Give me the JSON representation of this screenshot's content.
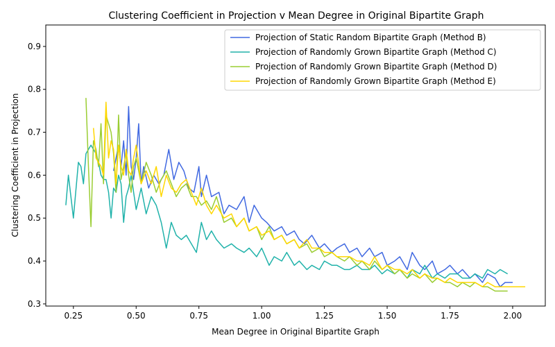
{
  "chart_data": {
    "type": "line",
    "title": "Clustering Coefficient in Projection v Mean Degree in Original Bipartite Graph",
    "xlabel": "Mean Degree in Original Bipartite Graph",
    "ylabel": "Clustering Coefficient in Projection",
    "xlim": [
      0.14,
      2.13
    ],
    "ylim": [
      0.295,
      0.95
    ],
    "xticks": [
      0.25,
      0.5,
      0.75,
      1.0,
      1.25,
      1.5,
      1.75,
      2.0
    ],
    "xtick_labels": [
      "0.25",
      "0.50",
      "0.75",
      "1.00",
      "1.25",
      "1.50",
      "1.75",
      "2.00"
    ],
    "yticks": [
      0.3,
      0.4,
      0.5,
      0.6,
      0.7,
      0.8,
      0.9
    ],
    "ytick_labels": [
      "0.3",
      "0.4",
      "0.5",
      "0.6",
      "0.7",
      "0.8",
      "0.9"
    ],
    "grid": false,
    "legend_position": "top-right",
    "series": [
      {
        "name": "Projection of Static Random Bipartite Graph (Method B)",
        "color": "#4169e1",
        "x": [
          0.41,
          0.42,
          0.43,
          0.44,
          0.45,
          0.46,
          0.47,
          0.48,
          0.49,
          0.5,
          0.51,
          0.52,
          0.53,
          0.55,
          0.57,
          0.59,
          0.61,
          0.63,
          0.65,
          0.67,
          0.69,
          0.71,
          0.73,
          0.75,
          0.76,
          0.78,
          0.8,
          0.83,
          0.85,
          0.87,
          0.9,
          0.93,
          0.95,
          0.97,
          1.0,
          1.02,
          1.05,
          1.08,
          1.1,
          1.13,
          1.15,
          1.17,
          1.2,
          1.23,
          1.25,
          1.28,
          1.3,
          1.33,
          1.35,
          1.38,
          1.4,
          1.43,
          1.45,
          1.48,
          1.5,
          1.53,
          1.55,
          1.58,
          1.6,
          1.63,
          1.65,
          1.68,
          1.7,
          1.73,
          1.75,
          1.78,
          1.8,
          1.83,
          1.85,
          1.88,
          1.9,
          1.93,
          1.95,
          1.97,
          2.0
        ],
        "y": [
          0.61,
          0.64,
          0.67,
          0.62,
          0.68,
          0.6,
          0.76,
          0.62,
          0.59,
          0.64,
          0.72,
          0.58,
          0.62,
          0.57,
          0.6,
          0.58,
          0.6,
          0.66,
          0.59,
          0.63,
          0.61,
          0.57,
          0.56,
          0.62,
          0.55,
          0.6,
          0.55,
          0.56,
          0.51,
          0.53,
          0.52,
          0.55,
          0.49,
          0.53,
          0.5,
          0.49,
          0.47,
          0.48,
          0.46,
          0.47,
          0.45,
          0.44,
          0.46,
          0.43,
          0.44,
          0.42,
          0.43,
          0.44,
          0.42,
          0.43,
          0.41,
          0.43,
          0.41,
          0.42,
          0.39,
          0.4,
          0.41,
          0.38,
          0.42,
          0.39,
          0.38,
          0.4,
          0.37,
          0.38,
          0.39,
          0.37,
          0.38,
          0.36,
          0.37,
          0.35,
          0.37,
          0.36,
          0.34,
          0.35,
          0.35
        ]
      },
      {
        "name": "Projection of Randomly Grown Bipartite Graph (Method C)",
        "color": "#20b2aa",
        "x": [
          0.22,
          0.23,
          0.25,
          0.27,
          0.28,
          0.29,
          0.3,
          0.31,
          0.32,
          0.33,
          0.34,
          0.35,
          0.36,
          0.37,
          0.38,
          0.39,
          0.4,
          0.41,
          0.42,
          0.43,
          0.44,
          0.45,
          0.46,
          0.47,
          0.48,
          0.49,
          0.5,
          0.52,
          0.54,
          0.56,
          0.58,
          0.6,
          0.62,
          0.64,
          0.66,
          0.68,
          0.7,
          0.72,
          0.74,
          0.76,
          0.78,
          0.8,
          0.82,
          0.85,
          0.88,
          0.9,
          0.93,
          0.95,
          0.98,
          1.0,
          1.03,
          1.05,
          1.08,
          1.1,
          1.13,
          1.15,
          1.18,
          1.2,
          1.23,
          1.25,
          1.28,
          1.3,
          1.33,
          1.35,
          1.38,
          1.4,
          1.43,
          1.45,
          1.48,
          1.5,
          1.53,
          1.55,
          1.58,
          1.6,
          1.63,
          1.65,
          1.68,
          1.7,
          1.73,
          1.75,
          1.78,
          1.8,
          1.83,
          1.85,
          1.88,
          1.9,
          1.93,
          1.95,
          1.98
        ],
        "y": [
          0.53,
          0.6,
          0.5,
          0.63,
          0.62,
          0.58,
          0.65,
          0.66,
          0.67,
          0.66,
          0.65,
          0.63,
          0.6,
          0.59,
          0.59,
          0.56,
          0.5,
          0.57,
          0.56,
          0.6,
          0.58,
          0.49,
          0.55,
          0.57,
          0.6,
          0.56,
          0.52,
          0.57,
          0.51,
          0.55,
          0.53,
          0.49,
          0.43,
          0.49,
          0.46,
          0.45,
          0.46,
          0.44,
          0.42,
          0.49,
          0.45,
          0.47,
          0.45,
          0.43,
          0.44,
          0.43,
          0.42,
          0.43,
          0.41,
          0.43,
          0.39,
          0.41,
          0.4,
          0.42,
          0.39,
          0.4,
          0.38,
          0.39,
          0.38,
          0.4,
          0.39,
          0.39,
          0.38,
          0.38,
          0.39,
          0.38,
          0.38,
          0.39,
          0.37,
          0.38,
          0.37,
          0.38,
          0.36,
          0.38,
          0.37,
          0.39,
          0.36,
          0.37,
          0.36,
          0.37,
          0.37,
          0.36,
          0.36,
          0.37,
          0.36,
          0.38,
          0.37,
          0.38,
          0.37
        ]
      },
      {
        "name": "Projection of Randomly Grown Bipartite Graph (Method D)",
        "color": "#9acd32",
        "x": [
          0.3,
          0.31,
          0.32,
          0.33,
          0.34,
          0.35,
          0.36,
          0.37,
          0.38,
          0.39,
          0.4,
          0.41,
          0.42,
          0.43,
          0.44,
          0.45,
          0.46,
          0.47,
          0.48,
          0.49,
          0.5,
          0.52,
          0.54,
          0.56,
          0.58,
          0.6,
          0.62,
          0.64,
          0.66,
          0.68,
          0.7,
          0.72,
          0.74,
          0.76,
          0.78,
          0.8,
          0.82,
          0.85,
          0.88,
          0.9,
          0.93,
          0.95,
          0.98,
          1.0,
          1.03,
          1.05,
          1.08,
          1.1,
          1.13,
          1.15,
          1.18,
          1.2,
          1.23,
          1.25,
          1.28,
          1.3,
          1.33,
          1.35,
          1.38,
          1.4,
          1.43,
          1.45,
          1.48,
          1.5,
          1.53,
          1.55,
          1.58,
          1.6,
          1.63,
          1.65,
          1.68,
          1.7,
          1.73,
          1.75,
          1.78,
          1.8,
          1.83,
          1.85,
          1.88,
          1.9,
          1.93,
          1.95,
          1.98
        ],
        "y": [
          0.78,
          0.62,
          0.48,
          0.68,
          0.66,
          0.62,
          0.72,
          0.58,
          0.74,
          0.72,
          0.7,
          0.65,
          0.56,
          0.74,
          0.59,
          0.62,
          0.65,
          0.6,
          0.56,
          0.62,
          0.64,
          0.58,
          0.63,
          0.6,
          0.56,
          0.59,
          0.61,
          0.58,
          0.55,
          0.57,
          0.58,
          0.55,
          0.55,
          0.53,
          0.54,
          0.52,
          0.55,
          0.49,
          0.5,
          0.48,
          0.5,
          0.47,
          0.48,
          0.45,
          0.48,
          0.45,
          0.46,
          0.44,
          0.45,
          0.43,
          0.44,
          0.42,
          0.43,
          0.41,
          0.42,
          0.41,
          0.4,
          0.41,
          0.39,
          0.4,
          0.38,
          0.4,
          0.38,
          0.39,
          0.37,
          0.38,
          0.36,
          0.37,
          0.36,
          0.37,
          0.35,
          0.36,
          0.35,
          0.35,
          0.34,
          0.35,
          0.34,
          0.35,
          0.34,
          0.34,
          0.33,
          0.33,
          0.33
        ]
      },
      {
        "name": "Projection of Randomly Grown Bipartite Graph (Method E)",
        "color": "#ffd700",
        "x": [
          0.33,
          0.34,
          0.36,
          0.37,
          0.38,
          0.39,
          0.4,
          0.41,
          0.42,
          0.43,
          0.44,
          0.45,
          0.46,
          0.47,
          0.48,
          0.49,
          0.5,
          0.52,
          0.54,
          0.56,
          0.58,
          0.6,
          0.62,
          0.64,
          0.66,
          0.68,
          0.7,
          0.72,
          0.74,
          0.76,
          0.78,
          0.8,
          0.82,
          0.85,
          0.88,
          0.9,
          0.93,
          0.95,
          0.98,
          1.0,
          1.03,
          1.05,
          1.08,
          1.1,
          1.13,
          1.15,
          1.18,
          1.2,
          1.23,
          1.25,
          1.28,
          1.3,
          1.33,
          1.35,
          1.38,
          1.4,
          1.43,
          1.45,
          1.48,
          1.5,
          1.53,
          1.55,
          1.58,
          1.6,
          1.63,
          1.65,
          1.68,
          1.7,
          1.73,
          1.75,
          1.78,
          1.8,
          1.83,
          1.85,
          1.88,
          1.9,
          1.93,
          1.95,
          1.98,
          2.0,
          2.05
        ],
        "y": [
          0.71,
          0.64,
          0.62,
          0.6,
          0.77,
          0.64,
          0.68,
          0.66,
          0.58,
          0.67,
          0.62,
          0.6,
          0.66,
          0.61,
          0.6,
          0.64,
          0.67,
          0.58,
          0.61,
          0.58,
          0.62,
          0.55,
          0.6,
          0.57,
          0.56,
          0.58,
          0.59,
          0.56,
          0.53,
          0.57,
          0.53,
          0.51,
          0.53,
          0.5,
          0.51,
          0.48,
          0.5,
          0.47,
          0.48,
          0.46,
          0.47,
          0.45,
          0.46,
          0.44,
          0.45,
          0.43,
          0.45,
          0.43,
          0.43,
          0.42,
          0.42,
          0.41,
          0.41,
          0.41,
          0.4,
          0.4,
          0.39,
          0.41,
          0.38,
          0.39,
          0.38,
          0.38,
          0.37,
          0.38,
          0.36,
          0.37,
          0.36,
          0.36,
          0.35,
          0.36,
          0.35,
          0.35,
          0.35,
          0.35,
          0.34,
          0.35,
          0.34,
          0.34,
          0.34,
          0.34,
          0.34
        ]
      }
    ]
  }
}
